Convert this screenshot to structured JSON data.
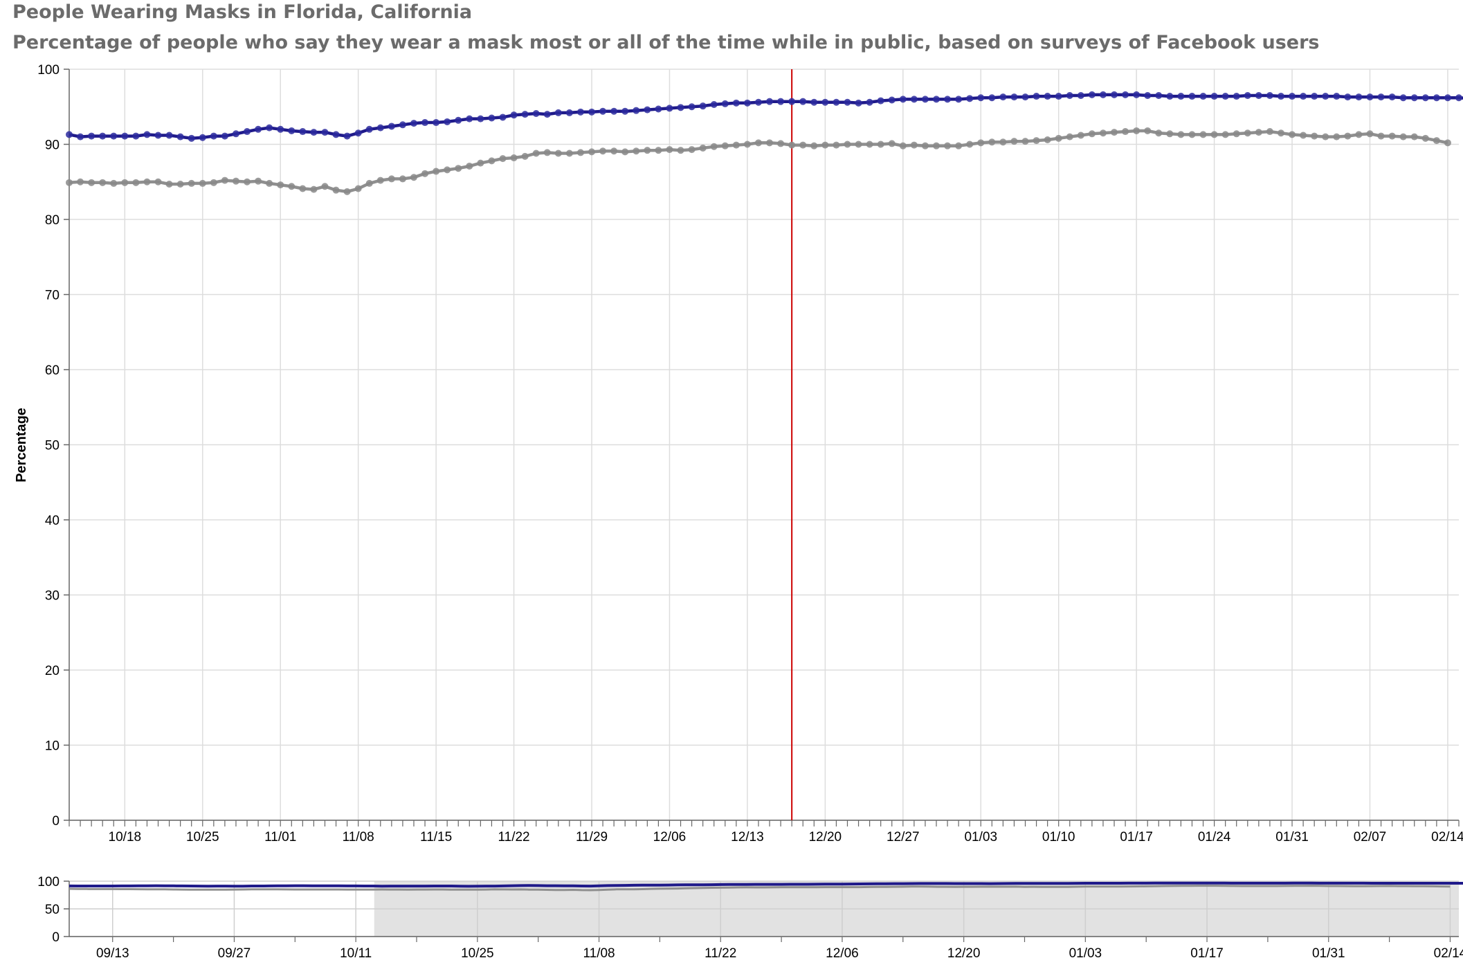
{
  "title": "People Wearing Masks in Florida, California",
  "subtitle": "Percentage of people who say they wear a mask most or all of the time while in public, based on surveys of Facebook users",
  "colors": {
    "series_1": "#1f1a8a",
    "series_2": "#8f8f8f",
    "marker_line": "#cc0000",
    "grid": "#dddddd",
    "axis": "#666666",
    "brush": "#e2e2e2"
  },
  "chart_data": [
    {
      "type": "line",
      "ylabel": "Percentage",
      "xlabel": "",
      "ylim": [
        0,
        100
      ],
      "yticks": [
        0,
        10,
        20,
        30,
        40,
        50,
        60,
        70,
        80,
        90,
        100
      ],
      "xlim": [
        "2020-10-13",
        "2021-02-15"
      ],
      "x_tick_labels": [
        "10/18",
        "10/25",
        "11/01",
        "11/08",
        "11/15",
        "11/22",
        "11/29",
        "12/06",
        "12/13",
        "12/20",
        "12/27",
        "01/03",
        "01/10",
        "01/17",
        "01/24",
        "01/31",
        "02/07",
        "02/14"
      ],
      "x_tick_dates": [
        "2020-10-18",
        "2020-10-25",
        "2020-11-01",
        "2020-11-08",
        "2020-11-15",
        "2020-11-22",
        "2020-11-29",
        "2020-12-06",
        "2020-12-13",
        "2020-12-20",
        "2020-12-27",
        "2021-01-03",
        "2021-01-10",
        "2021-01-17",
        "2021-01-24",
        "2021-01-31",
        "2021-02-07",
        "2021-02-14"
      ],
      "highlight_date": "2020-12-17",
      "grid": true,
      "series": [
        {
          "x_start": "2020-10-13",
          "values": [
            91.3,
            91.0,
            91.1,
            91.1,
            91.1,
            91.1,
            91.1,
            91.3,
            91.2,
            91.2,
            91.0,
            90.8,
            90.9,
            91.1,
            91.1,
            91.4,
            91.7,
            92.0,
            92.2,
            92.0,
            91.8,
            91.7,
            91.6,
            91.6,
            91.3,
            91.1,
            91.5,
            92.0,
            92.2,
            92.4,
            92.6,
            92.8,
            92.9,
            92.9,
            93.0,
            93.2,
            93.4,
            93.4,
            93.5,
            93.6,
            93.9,
            94.0,
            94.1,
            94.0,
            94.2,
            94.2,
            94.3,
            94.3,
            94.4,
            94.4,
            94.4,
            94.5,
            94.6,
            94.7,
            94.8,
            94.9,
            95.0,
            95.1,
            95.3,
            95.4,
            95.5,
            95.5,
            95.6,
            95.7,
            95.7,
            95.7,
            95.7,
            95.6,
            95.6,
            95.6,
            95.6,
            95.5,
            95.6,
            95.8,
            95.9,
            96.0,
            96.0,
            96.0,
            96.0,
            96.0,
            96.0,
            96.1,
            96.2,
            96.2,
            96.3,
            96.3,
            96.3,
            96.4,
            96.4,
            96.4,
            96.5,
            96.5,
            96.6,
            96.6,
            96.6,
            96.6,
            96.6,
            96.5,
            96.5,
            96.4,
            96.4,
            96.4,
            96.4,
            96.4,
            96.4,
            96.4,
            96.5,
            96.5,
            96.5,
            96.4,
            96.4,
            96.4,
            96.4,
            96.4,
            96.4,
            96.3,
            96.3,
            96.3,
            96.3,
            96.3,
            96.2,
            96.2,
            96.2,
            96.2,
            96.2,
            96.2,
            96.1,
            96.1,
            96.1,
            96.0,
            96.0,
            95.9
          ]
        },
        {
          "x_start": "2020-10-13",
          "values": [
            84.9,
            85.0,
            84.9,
            84.9,
            84.8,
            84.9,
            84.9,
            85.0,
            85.0,
            84.7,
            84.7,
            84.8,
            84.8,
            84.9,
            85.2,
            85.1,
            85.0,
            85.1,
            84.8,
            84.6,
            84.4,
            84.1,
            84.0,
            84.4,
            83.9,
            83.7,
            84.1,
            84.8,
            85.2,
            85.4,
            85.4,
            85.6,
            86.1,
            86.4,
            86.6,
            86.8,
            87.1,
            87.5,
            87.8,
            88.1,
            88.2,
            88.4,
            88.8,
            88.9,
            88.8,
            88.8,
            88.9,
            89.0,
            89.1,
            89.1,
            89.0,
            89.1,
            89.2,
            89.2,
            89.3,
            89.2,
            89.3,
            89.5,
            89.7,
            89.8,
            89.9,
            90.0,
            90.2,
            90.2,
            90.1,
            89.9,
            89.9,
            89.8,
            89.9,
            89.9,
            90.0,
            90.0,
            90.0,
            90.0,
            90.1,
            89.8,
            89.9,
            89.8,
            89.8,
            89.8,
            89.8,
            90.0,
            90.2,
            90.3,
            90.3,
            90.4,
            90.4,
            90.5,
            90.6,
            90.8,
            91.0,
            91.2,
            91.4,
            91.5,
            91.6,
            91.7,
            91.8,
            91.8,
            91.5,
            91.4,
            91.3,
            91.3,
            91.3,
            91.3,
            91.3,
            91.4,
            91.5,
            91.6,
            91.7,
            91.5,
            91.3,
            91.2,
            91.1,
            91.0,
            91.0,
            91.1,
            91.3,
            91.4,
            91.1,
            91.1,
            91.0,
            91.0,
            90.8,
            90.5,
            90.2
          ]
        }
      ]
    },
    {
      "type": "area",
      "ylim": [
        0,
        100
      ],
      "yticks": [
        0,
        50,
        100
      ],
      "xlim": [
        "2020-09-08",
        "2021-02-15"
      ],
      "x_tick_labels": [
        "09/13",
        "09/27",
        "10/11",
        "10/25",
        "11/08",
        "11/22",
        "12/06",
        "12/20",
        "01/03",
        "01/17",
        "01/31",
        "02/14"
      ],
      "x_tick_dates": [
        "2020-09-13",
        "2020-09-27",
        "2020-10-11",
        "2020-10-25",
        "2020-11-08",
        "2020-11-22",
        "2020-12-06",
        "2020-12-20",
        "2021-01-03",
        "2021-01-17",
        "2021-01-31",
        "2021-02-14"
      ],
      "selected_range": [
        "2020-10-13",
        "2021-02-15"
      ],
      "series_overview": [
        {
          "x_start": "2020-09-08",
          "values": [
            91.4,
            91.3,
            91.2,
            91.2,
            91.2,
            91.3,
            91.4,
            91.4,
            91.5,
            91.6,
            91.7,
            91.6,
            91.5,
            91.4,
            91.3,
            91.1,
            91.0,
            91.1,
            91.1,
            91.0,
            91.0,
            91.2,
            91.3,
            91.4,
            91.5,
            91.6,
            91.7,
            91.7,
            91.6,
            91.6,
            91.5,
            91.5,
            91.4,
            91.4,
            91.3
          ]
        },
        {
          "x_start": "2020-09-08",
          "values": [
            86.2,
            86.0,
            85.9,
            85.8,
            85.8,
            85.7,
            85.6,
            85.6,
            85.5,
            85.4,
            85.3,
            85.2,
            85.0,
            84.9,
            84.8,
            84.7,
            84.6,
            84.6,
            84.7,
            84.9,
            85.0,
            85.2,
            85.3,
            85.3,
            85.2,
            85.1,
            85.0,
            85.0,
            85.0,
            85.0,
            85.0,
            85.0,
            84.9,
            84.9,
            84.9
          ]
        }
      ]
    }
  ]
}
